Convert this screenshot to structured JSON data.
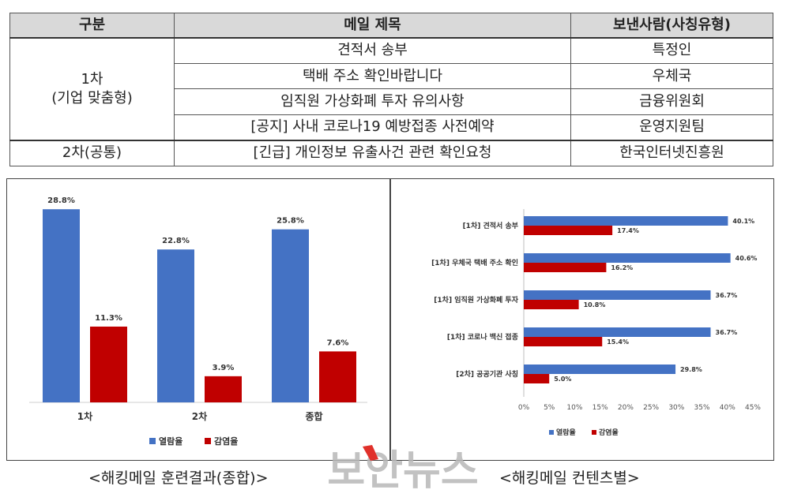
{
  "table": {
    "headers": [
      "구분",
      "메일 제목",
      "보낸사람(사칭유형)"
    ],
    "group1": {
      "label_line1": "1차",
      "label_line2": "(기업 맞춤형)"
    },
    "rows": [
      {
        "title": "견적서 송부",
        "sender": "특정인"
      },
      {
        "title": "택배 주소 확인바랍니다",
        "sender": "우체국"
      },
      {
        "title": "임직원 가상화폐 투자 유의사항",
        "sender": "금융위원회"
      },
      {
        "title": "[공지] 사내 코로나19 예방접종 사전예약",
        "sender": "운영지원팀"
      }
    ],
    "group2": {
      "label": "2차(공통)",
      "title": "[긴급] 개인정보 유출사건 관련 확인요청",
      "sender": "한국인터넷진흥원"
    }
  },
  "chart_data": [
    {
      "type": "bar",
      "categories": [
        "1차",
        "2차",
        "종합"
      ],
      "series": [
        {
          "name": "열람율",
          "values": [
            28.8,
            22.8,
            25.8
          ],
          "labels": [
            "28.8%",
            "22.8%",
            "25.8%"
          ],
          "color": "#4472c4"
        },
        {
          "name": "감염율",
          "values": [
            11.3,
            3.9,
            7.6
          ],
          "labels": [
            "11.3%",
            "3.9%",
            "7.6%"
          ],
          "color": "#c00000"
        }
      ],
      "ylim": [
        0,
        30
      ],
      "legend": "bottom",
      "grid": false
    },
    {
      "type": "bar",
      "orientation": "horizontal",
      "categories": [
        "[1차] 견적서 송부",
        "[1차] 우체국 택배 주소 확인",
        "[1차] 임직원 가상화폐 투자",
        "[1차] 코로나 백신 접종",
        "[2차] 공공기관 사칭"
      ],
      "series": [
        {
          "name": "열람율",
          "values": [
            40.1,
            40.6,
            36.7,
            36.7,
            29.8
          ],
          "labels": [
            "40.1%",
            "40.6%",
            "36.7%",
            "36.7%",
            "29.8%"
          ],
          "color": "#4472c4"
        },
        {
          "name": "감염율",
          "values": [
            17.4,
            16.2,
            10.8,
            15.4,
            5.0
          ],
          "labels": [
            "17.4%",
            "16.2%",
            "10.8%",
            "15.4%",
            "5.0%"
          ],
          "color": "#c00000"
        }
      ],
      "xlim": [
        0,
        45
      ],
      "xticks": [
        "0%",
        "5%",
        "10%",
        "15%",
        "20%",
        "25%",
        "30%",
        "35%",
        "40%",
        "45%"
      ],
      "legend": "bottom",
      "grid": false
    }
  ],
  "captions": {
    "left": "<해킹메일 훈련결과(종합)>",
    "right": "<해킹메일 컨텐츠별>"
  },
  "watermark": {
    "text": "보안뉴스",
    "color": "#b8b8b8",
    "accent": "#e0302a"
  }
}
